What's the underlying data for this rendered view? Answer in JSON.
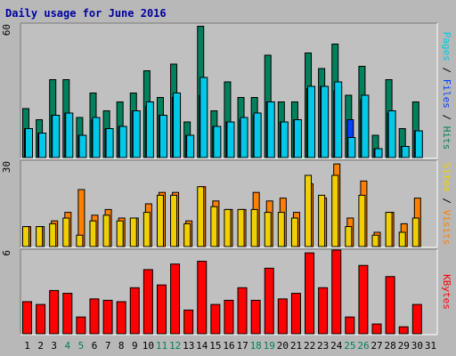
{
  "title": "Daily usage for June 2016",
  "colors": {
    "background": "#c0c0c0",
    "title_text": "#0000a0",
    "hits": "#00805c",
    "files": "#0040ff",
    "pages": "#00c8e8",
    "visits": "#ff8000",
    "sites": "#f0d000",
    "kbytes": "#ff0000",
    "weekend_day": "#00805c",
    "weekday": "#000000"
  },
  "chart_data": [
    {
      "type": "bar",
      "panel": "hits-files-pages",
      "title": "Daily usage for June 2016",
      "ylabel_parts": [
        "Pages",
        "Files",
        "Hits"
      ],
      "ymax_label": "60",
      "ylim": [
        0,
        60
      ],
      "categories": [
        "1",
        "2",
        "3",
        "4",
        "5",
        "6",
        "7",
        "8",
        "9",
        "10",
        "11",
        "12",
        "13",
        "14",
        "15",
        "16",
        "17",
        "18",
        "19",
        "20",
        "21",
        "22",
        "23",
        "24",
        "25",
        "26",
        "27",
        "28",
        "29",
        "30",
        "31"
      ],
      "series": [
        {
          "name": "Hits",
          "values": [
            22,
            17,
            35,
            35,
            18,
            29,
            21,
            25,
            29,
            39,
            27,
            42,
            16,
            59,
            21,
            34,
            27,
            27,
            46,
            25,
            25,
            47,
            40,
            51,
            28,
            41,
            10,
            35,
            13,
            25,
            0
          ]
        },
        {
          "name": "Files",
          "values": [
            13,
            11,
            19,
            20,
            10,
            17,
            13,
            14,
            21,
            23,
            19,
            27,
            10,
            28,
            14,
            16,
            17,
            19,
            25,
            16,
            17,
            31,
            32,
            30,
            17,
            26,
            4,
            20,
            5,
            12,
            0
          ]
        },
        {
          "name": "Pages",
          "values": [
            13,
            11,
            19,
            20,
            10,
            18,
            13,
            14,
            21,
            25,
            19,
            29,
            10,
            36,
            14,
            16,
            18,
            20,
            25,
            16,
            17,
            32,
            32,
            34,
            9,
            28,
            4,
            21,
            5,
            12,
            0
          ]
        }
      ]
    },
    {
      "type": "bar",
      "panel": "sites-visits",
      "ylabel_parts": [
        "Sites",
        "Visits"
      ],
      "ymax_label": "30",
      "ylim": [
        0,
        30
      ],
      "categories": [
        "1",
        "2",
        "3",
        "4",
        "5",
        "6",
        "7",
        "8",
        "9",
        "10",
        "11",
        "12",
        "13",
        "14",
        "15",
        "16",
        "17",
        "18",
        "19",
        "20",
        "21",
        "22",
        "23",
        "24",
        "25",
        "26",
        "27",
        "28",
        "29",
        "30",
        "31"
      ],
      "series": [
        {
          "name": "Visits",
          "values": [
            7,
            7,
            9,
            12,
            20,
            11,
            13,
            10,
            10,
            15,
            19,
            19,
            9,
            21,
            16,
            13,
            13,
            19,
            16,
            17,
            12,
            22,
            17,
            29,
            10,
            23,
            5,
            12,
            8,
            17,
            0
          ]
        },
        {
          "name": "Sites",
          "values": [
            7,
            7,
            8,
            10,
            4,
            9,
            11,
            9,
            10,
            12,
            18,
            18,
            8,
            21,
            14,
            13,
            13,
            13,
            12,
            12,
            10,
            25,
            18,
            25,
            7,
            18,
            4,
            12,
            5,
            10,
            0
          ]
        }
      ]
    },
    {
      "type": "bar",
      "panel": "kbytes",
      "ylabel_parts": [
        "KBytes"
      ],
      "ymax_label": "6",
      "ylim": [
        0,
        6
      ],
      "categories": [
        "1",
        "2",
        "3",
        "4",
        "5",
        "6",
        "7",
        "8",
        "9",
        "10",
        "11",
        "12",
        "13",
        "14",
        "15",
        "16",
        "17",
        "18",
        "19",
        "20",
        "21",
        "22",
        "23",
        "24",
        "25",
        "26",
        "27",
        "28",
        "29",
        "30",
        "31"
      ],
      "series": [
        {
          "name": "KBytes",
          "values": [
            2.3,
            2.1,
            3.1,
            2.9,
            1.2,
            2.5,
            2.4,
            2.3,
            3.3,
            4.6,
            3.5,
            5.0,
            1.7,
            5.2,
            2.1,
            2.4,
            3.3,
            2.4,
            4.7,
            2.5,
            2.9,
            5.8,
            3.3,
            6.2,
            1.2,
            4.9,
            0.7,
            4.1,
            0.5,
            2.1,
            0
          ]
        }
      ]
    }
  ],
  "weekend_days": [
    4,
    5,
    11,
    12,
    18,
    19,
    25,
    26
  ]
}
